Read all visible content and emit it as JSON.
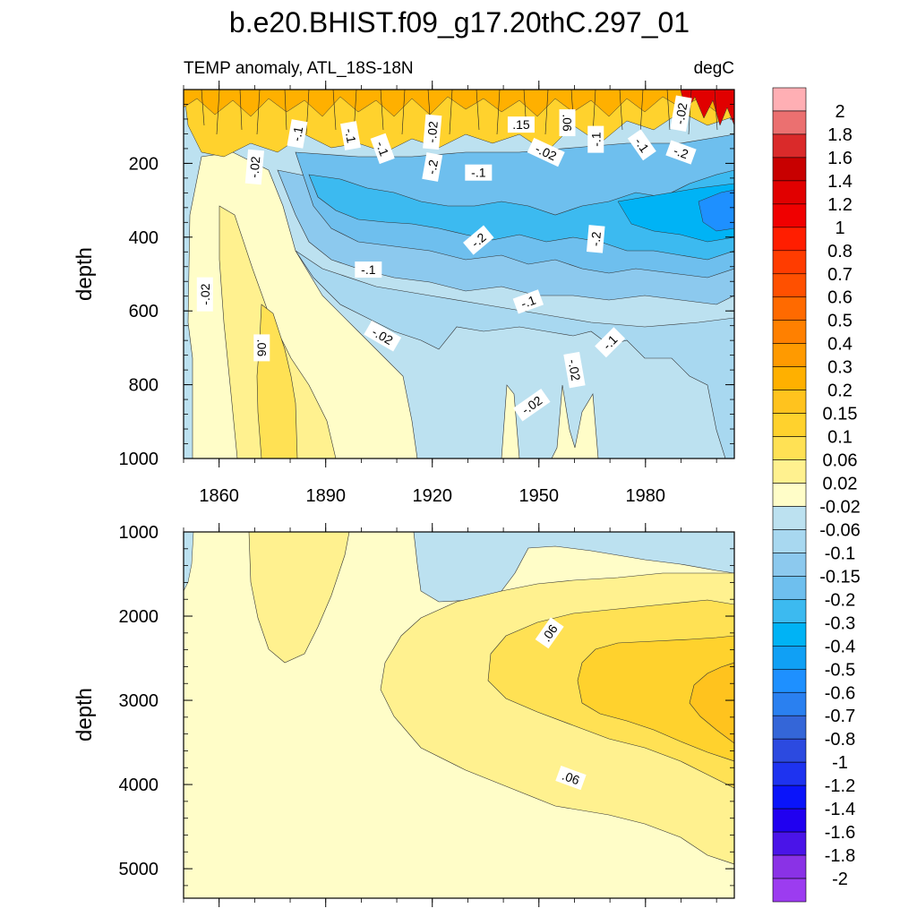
{
  "chart_data": [
    {
      "type": "heatmap",
      "title": "b.e20.BHIST.f09_g17.20thC.297_01",
      "subtitle_left": "TEMP anomaly, ATL_18S-18N",
      "subtitle_right": "degC",
      "panel": "upper",
      "ylabel": "depth",
      "ylim": [
        1000,
        0
      ],
      "xlim": [
        1850,
        2005
      ],
      "x_ticks": [
        "1860",
        "1890",
        "1920",
        "1950",
        "1980"
      ],
      "y_ticks": [
        "200",
        "400",
        "600",
        "800",
        "1000"
      ],
      "contour_labels": [
        {
          "text": "-.1",
          "year": 1882,
          "depth": 120,
          "angle": -80
        },
        {
          "text": "-.1",
          "year": 1897,
          "depth": 125,
          "angle": 80
        },
        {
          "text": "-.1",
          "year": 1906,
          "depth": 160,
          "angle": 70
        },
        {
          "text": "-.02",
          "year": 1920,
          "depth": 115,
          "angle": -85
        },
        {
          "text": ".15",
          "year": 1945,
          "depth": 95,
          "angle": 0
        },
        {
          "text": ".06",
          "year": 1958,
          "depth": 90,
          "angle": 90
        },
        {
          "text": "-.02",
          "year": 1952,
          "depth": 170,
          "angle": 25
        },
        {
          "text": "-.1",
          "year": 1966,
          "depth": 135,
          "angle": -90
        },
        {
          "text": "-.1",
          "year": 1979,
          "depth": 150,
          "angle": 55
        },
        {
          "text": "-.02",
          "year": 1990,
          "depth": 65,
          "angle": -80
        },
        {
          "text": "-.2",
          "year": 1990,
          "depth": 170,
          "angle": 20
        },
        {
          "text": "-.02",
          "year": 1870,
          "depth": 210,
          "angle": -85
        },
        {
          "text": "-.2",
          "year": 1920,
          "depth": 210,
          "angle": -80
        },
        {
          "text": "-.1",
          "year": 1933,
          "depth": 225,
          "angle": 0
        },
        {
          "text": "-.2",
          "year": 1933,
          "depth": 408,
          "angle": -40
        },
        {
          "text": "-.2",
          "year": 1966,
          "depth": 405,
          "angle": -85
        },
        {
          "text": "-.1",
          "year": 1902,
          "depth": 488,
          "angle": 0
        },
        {
          "text": "-.02",
          "year": 1856,
          "depth": 555,
          "angle": -90
        },
        {
          "text": "-.1",
          "year": 1947,
          "depth": 575,
          "angle": -20
        },
        {
          "text": ".06",
          "year": 1872,
          "depth": 700,
          "angle": 90
        },
        {
          "text": "-.02",
          "year": 1906,
          "depth": 668,
          "angle": 30
        },
        {
          "text": "-.1",
          "year": 1970,
          "depth": 685,
          "angle": -45
        },
        {
          "text": "-.02",
          "year": 1960,
          "depth": 760,
          "angle": 80
        },
        {
          "text": "-.02",
          "year": 1948,
          "depth": 855,
          "angle": -35
        }
      ]
    },
    {
      "type": "heatmap",
      "panel": "lower",
      "ylabel": "depth",
      "ylim": [
        5350,
        1000
      ],
      "xlim": [
        1850,
        2005
      ],
      "y_ticks": [
        "1000",
        "2000",
        "3000",
        "4000",
        "5000"
      ],
      "contour_labels": [
        {
          "text": ".06",
          "year": 1953,
          "depth": 2200,
          "angle": -55
        },
        {
          "text": ".06",
          "year": 1959,
          "depth": 3920,
          "angle": 20
        }
      ]
    }
  ],
  "colorbar": {
    "labels": [
      "2",
      "1.8",
      "1.6",
      "1.4",
      "1.2",
      "1",
      "0.8",
      "0.7",
      "0.6",
      "0.5",
      "0.4",
      "0.3",
      "0.2",
      "0.15",
      "0.1",
      "0.06",
      "0.02",
      "-0.02",
      "-0.06",
      "-0.1",
      "-0.15",
      "-0.2",
      "-0.3",
      "-0.4",
      "-0.5",
      "-0.6",
      "-0.7",
      "-0.8",
      "-1",
      "-1.2",
      "-1.4",
      "-1.6",
      "-1.8",
      "-2"
    ],
    "colors": [
      "#FFAFB4",
      "#EB7070",
      "#DA2A2A",
      "#C80000",
      "#E10000",
      "#F00000",
      "#FF1E00",
      "#FF3C00",
      "#FF5000",
      "#FF6A00",
      "#FF8000",
      "#FF9A00",
      "#FFB000",
      "#FFC31E",
      "#FFD22D",
      "#FFE154",
      "#FFF18F",
      "#FFFDC8",
      "#BCE1F0",
      "#A8D8F0",
      "#8CC9EE",
      "#6EBFEE",
      "#3CBAF0",
      "#00B3F5",
      "#10A0F5",
      "#1E90FF",
      "#2A80F0",
      "#3466D8",
      "#2C4AE0",
      "#1E33F0",
      "#0A14FA",
      "#2000F0",
      "#4A14E8",
      "#8A32E6",
      "#9C3CF0"
    ]
  }
}
